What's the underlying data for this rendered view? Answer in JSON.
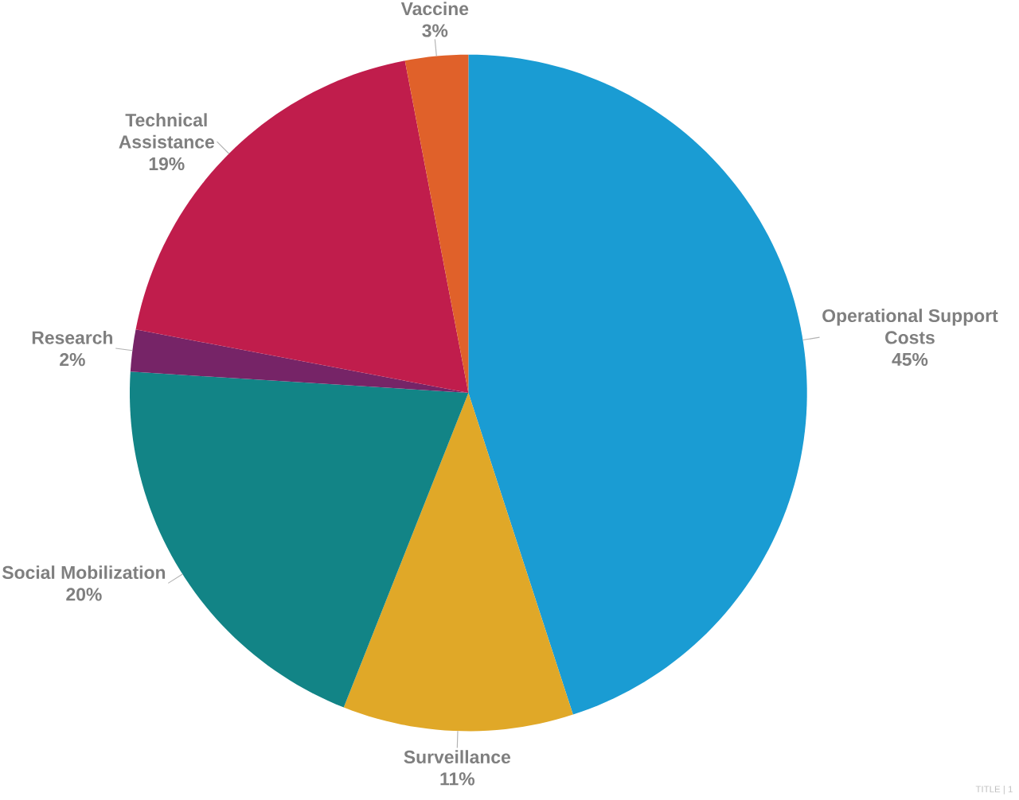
{
  "chart_data": {
    "type": "pie",
    "categories": [
      "Operational Support Costs",
      "Surveillance",
      "Social Mobilization",
      "Research",
      "Technical Assistance",
      "Vaccine"
    ],
    "values": [
      45,
      11,
      20,
      2,
      19,
      3
    ],
    "value_labels": [
      "45%",
      "11%",
      "20%",
      "2%",
      "19%",
      "3%"
    ],
    "colors": [
      "#1a9cd3",
      "#e0a828",
      "#128486",
      "#762467",
      "#c01d4c",
      "#e0612a"
    ],
    "annotations": [
      "TITLE | 1"
    ]
  }
}
